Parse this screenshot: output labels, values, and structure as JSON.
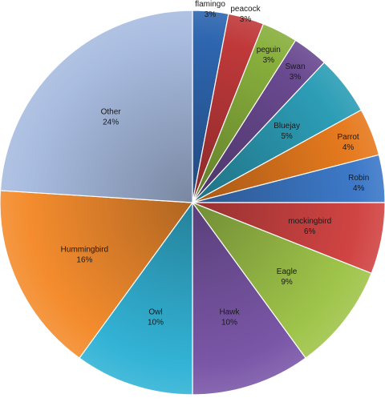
{
  "chart_data": {
    "type": "pie",
    "title": "",
    "legend": "none",
    "slices": [
      {
        "label": "flamingo",
        "percent_label": "3%",
        "value": 3,
        "color": "#2E66B0"
      },
      {
        "label": "peacock",
        "percent_label": "3%",
        "value": 3,
        "color": "#C0393A"
      },
      {
        "label": "peguin",
        "percent_label": "3%",
        "value": 3,
        "color": "#88AF3C"
      },
      {
        "label": "Swan",
        "percent_label": "3%",
        "value": 3,
        "color": "#6A4A91"
      },
      {
        "label": "Bluejay",
        "percent_label": "5%",
        "value": 5,
        "color": "#2C9DB6"
      },
      {
        "label": "Parrot",
        "percent_label": "4%",
        "value": 4,
        "color": "#E67A1E"
      },
      {
        "label": "Robin",
        "percent_label": "4%",
        "value": 4,
        "color": "#3D79C8"
      },
      {
        "label": "mockingbird",
        "percent_label": "6%",
        "value": 6,
        "color": "#D04443"
      },
      {
        "label": "Eagle",
        "percent_label": "9%",
        "value": 9,
        "color": "#9FC44A"
      },
      {
        "label": "Hawk",
        "percent_label": "10%",
        "value": 10,
        "color": "#7B57A8"
      },
      {
        "label": "Owl",
        "percent_label": "10%",
        "value": 10,
        "color": "#33B3D6"
      },
      {
        "label": "Hummingbird",
        "percent_label": "16%",
        "value": 16,
        "color": "#F48C2E"
      },
      {
        "label": "Other",
        "percent_label": "24%",
        "value": 24,
        "color": "#A8BCE0"
      }
    ]
  }
}
